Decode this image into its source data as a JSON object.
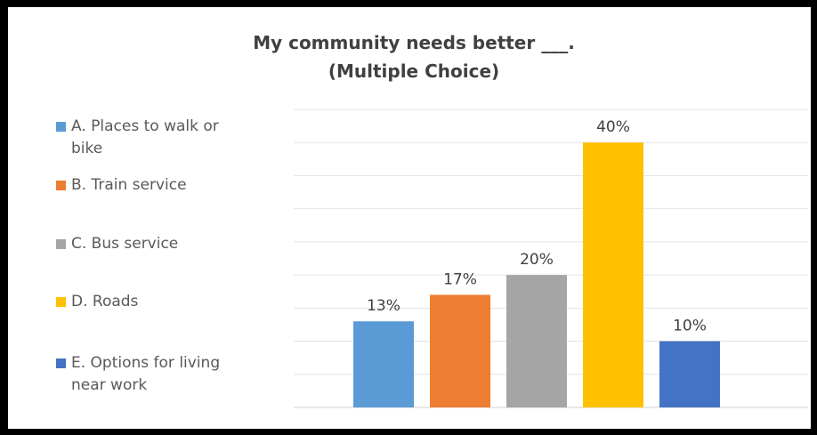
{
  "chart_data": {
    "type": "bar",
    "title": [
      "My community needs better ___.",
      "(Multiple Choice)"
    ],
    "categories": [
      "A. Places to walk or bike",
      "B. Train service",
      "C. Bus service",
      "D. Roads",
      "E. Options for living near work"
    ],
    "legend_lines": [
      [
        "A. Places to walk or",
        "bike"
      ],
      [
        "B. Train service"
      ],
      [
        "C. Bus service"
      ],
      [
        "D. Roads"
      ],
      [
        "E. Options for living",
        "near work"
      ]
    ],
    "values": [
      13,
      17,
      20,
      40,
      10
    ],
    "data_labels": [
      "13%",
      "17%",
      "20%",
      "40%",
      "10%"
    ],
    "colors": [
      "#5B9BD5",
      "#ED7D31",
      "#A5A5A5",
      "#FFC000",
      "#4472C4"
    ],
    "ylim": [
      0,
      45
    ],
    "grid": true,
    "legend": "left",
    "xlabel": "",
    "ylabel": ""
  }
}
